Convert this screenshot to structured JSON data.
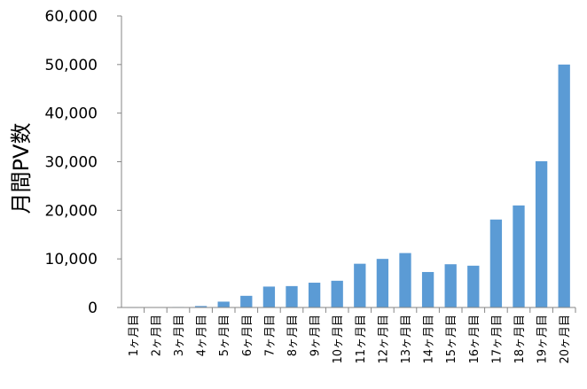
{
  "chart_data": {
    "type": "bar",
    "ylabel": "月間PV数",
    "xlabel": "",
    "title": "",
    "ylim": [
      0,
      60000
    ],
    "yticks": [
      "0",
      "10,000",
      "20,000",
      "30,000",
      "40,000",
      "50,000",
      "60,000"
    ],
    "grid": false,
    "bar_color": "#5B9BD5",
    "categories": [
      "1ヶ月目",
      "2ヶ月目",
      "3ヶ月目",
      "4ヶ月目",
      "5ヶ月目",
      "6ヶ月目",
      "7ヶ月目",
      "8ヶ月目",
      "9ヶ月目",
      "10ヶ月目",
      "11ヶ月目",
      "12ヶ月目",
      "13ヶ月目",
      "14ヶ月目",
      "15ヶ月目",
      "16ヶ月目",
      "17ヶ月目",
      "18ヶ月目",
      "19ヶ月目",
      "20ヶ月目"
    ],
    "values": [
      50,
      80,
      100,
      300,
      1200,
      2400,
      4300,
      4400,
      5100,
      5500,
      9000,
      10000,
      11200,
      7300,
      8900,
      8600,
      18100,
      21000,
      30100,
      50000
    ]
  }
}
